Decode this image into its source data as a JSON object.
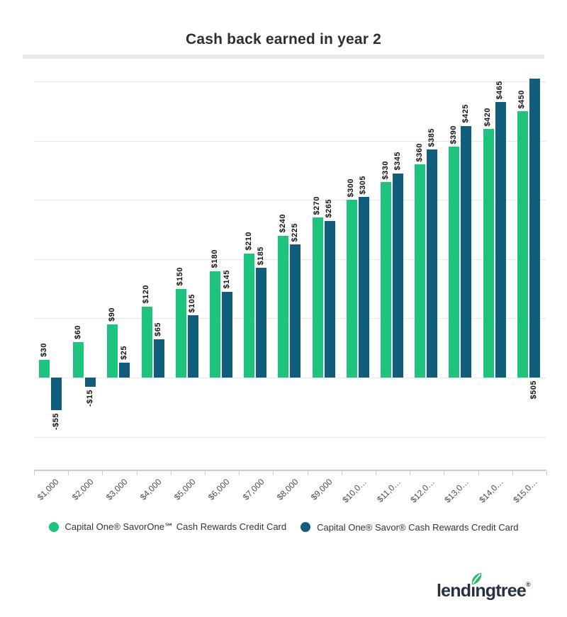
{
  "title": "Cash back earned in year 2",
  "chart_data": {
    "type": "bar",
    "title": "Cash back earned in year 2",
    "categories": [
      "$1,000",
      "$2,000",
      "$3,000",
      "$4,000",
      "$5,000",
      "$6,000",
      "$7,000",
      "$8,000",
      "$9,000",
      "$10,0…",
      "$11,0…",
      "$12,0…",
      "$13,0…",
      "$14,0…",
      "$15,0…"
    ],
    "series": [
      {
        "name": "Capital One® SavorOne℠ Cash Rewards Credit Card",
        "color": "#1dc47e",
        "values": [
          30,
          60,
          90,
          120,
          150,
          180,
          210,
          240,
          270,
          300,
          330,
          360,
          390,
          420,
          450
        ],
        "data_labels": [
          "$30",
          "$60",
          "$90",
          "$120",
          "$150",
          "$180",
          "$210",
          "$240",
          "$270",
          "$300",
          "$330",
          "$360",
          "$390",
          "$420",
          "$450"
        ]
      },
      {
        "name": "Capital One® Savor® Cash Rewards Credit Card",
        "color": "#115d7c",
        "values": [
          -55,
          -15,
          25,
          65,
          105,
          145,
          185,
          225,
          265,
          305,
          345,
          385,
          425,
          465,
          505
        ],
        "data_labels": [
          "-$55",
          "-$15",
          "$25",
          "$65",
          "$105",
          "$145",
          "$185",
          "$225",
          "$265",
          "$305",
          "$345",
          "$385",
          "$425",
          "$465",
          "$505"
        ]
      }
    ],
    "ylim": [
      -155,
      505
    ],
    "gridlines": [
      -100,
      0,
      100,
      200,
      300,
      400,
      500
    ],
    "grid": "horizontal-only",
    "xlabel": "",
    "ylabel": "",
    "y_axis_labels_visible": false,
    "data_label_rotation": -90,
    "x_label_rotation": -45,
    "legend_position": "bottom"
  },
  "legend": {
    "items": [
      {
        "label": "Capital One® SavorOne℠ Cash Rewards Credit Card",
        "color": "#1dc47e"
      },
      {
        "label": "Capital One® Savor® Cash Rewards Credit Card",
        "color": "#115d7c"
      }
    ]
  },
  "branding": {
    "logo_text": "lendingtree",
    "registered_mark": "®",
    "logo_color": "#253140",
    "leaf_color": "#2dbd68"
  },
  "colors": {
    "series_green": "#1dc47e",
    "series_dark_teal": "#115d7c",
    "gridline": "#e6e6e6",
    "axis": "#cccccc",
    "title_text": "#2e2e2e"
  }
}
